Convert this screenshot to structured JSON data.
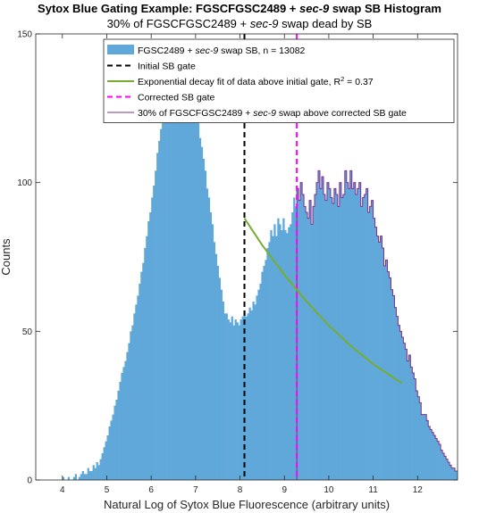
{
  "chart_data": {
    "type": "bar",
    "title": {
      "prefix": "Sytox Blue Gating Example: FGSCFGSC2489 + ",
      "italic": "sec-9",
      "suffix": " swap SB Histogram"
    },
    "subtitle": {
      "prefix": "30% of FGSCFGSC2489 + ",
      "italic": "sec-9",
      "suffix": " swap dead by SB"
    },
    "xlabel": "Natural Log of Sytox Blue Fluorescence (arbitrary units)",
    "ylabel": "Counts",
    "xlim": [
      3.4,
      12.9
    ],
    "ylim": [
      0,
      150
    ],
    "xticks": [
      "4",
      "5",
      "6",
      "7",
      "8",
      "9",
      "10",
      "11",
      "12"
    ],
    "yticks": [
      "0",
      "50",
      "100",
      "150"
    ],
    "grid": false,
    "legend_position": "top-right",
    "legend": [
      {
        "prefix": "FGSC2489 + ",
        "italic": "sec-9",
        "suffix": " swap SB, n = 13082"
      },
      {
        "prefix": "Initial SB gate",
        "italic": "",
        "suffix": ""
      },
      {
        "prefix": "Exponential decay fit of data above initial gate, R",
        "sup": "2",
        "suffix": " = 0.37"
      },
      {
        "prefix": "Corrected SB gate",
        "italic": "",
        "suffix": ""
      },
      {
        "prefix": "30% of FGSCFGSC2489 + ",
        "italic": "sec-9",
        "suffix": " swap above corrected SB gate"
      }
    ],
    "colors": {
      "histogram": "#5fa8d9",
      "initial_gate": "#000000",
      "fit": "#77ac30",
      "corrected_gate": "#ff00ff",
      "above_gate_outline": "#7e2f8e"
    },
    "histogram": {
      "bin_start": 3.4,
      "bin_width": 0.04,
      "counts": [
        0,
        0,
        0,
        0,
        0,
        0,
        0,
        0,
        0,
        0,
        0,
        0,
        0,
        0,
        0,
        1,
        0,
        0,
        1,
        0,
        0,
        1,
        2,
        0,
        1,
        2,
        3,
        2,
        2,
        4,
        3,
        3,
        5,
        4,
        6,
        5,
        7,
        9,
        11,
        13,
        15,
        18,
        20,
        22,
        25,
        27,
        30,
        33,
        36,
        38,
        40,
        43,
        46,
        50,
        52,
        56,
        59,
        62,
        66,
        70,
        73,
        78,
        82,
        87,
        90,
        95,
        99,
        104,
        110,
        114,
        118,
        120,
        124,
        126,
        129,
        132,
        134,
        136,
        138,
        140,
        140,
        142,
        140,
        144,
        140,
        138,
        136,
        142,
        138,
        130,
        126,
        120,
        115,
        112,
        108,
        104,
        98,
        95,
        90,
        86,
        80,
        76,
        72,
        68,
        64,
        60,
        56,
        56,
        54,
        53,
        55,
        52,
        54,
        53,
        52,
        54,
        55,
        57,
        55,
        56,
        58,
        57,
        60,
        59,
        62,
        64,
        66,
        70,
        72,
        74,
        78,
        80,
        84,
        82,
        86,
        82,
        88,
        86,
        84,
        88,
        84,
        83,
        85,
        86,
        90,
        95,
        92,
        98,
        94,
        100,
        96,
        92,
        90,
        88,
        94,
        86,
        92,
        96,
        100,
        104,
        98,
        102,
        96,
        94,
        100,
        98,
        95,
        93,
        98,
        96,
        92,
        100,
        95,
        96,
        104,
        100,
        98,
        104,
        98,
        100,
        96,
        98,
        100,
        92,
        95,
        96,
        98,
        90,
        92,
        94,
        88,
        85,
        82,
        80,
        82,
        78,
        72,
        74,
        70,
        68,
        64,
        62,
        58,
        55,
        52,
        50,
        48,
        46,
        44,
        40,
        42,
        38,
        36,
        34,
        30,
        28,
        26,
        22,
        22,
        22,
        20,
        18,
        17,
        16,
        15,
        14,
        13,
        12,
        10,
        9,
        8,
        7,
        6,
        5,
        4,
        4,
        3,
        3,
        2,
        2,
        1,
        0,
        0,
        0,
        0
      ]
    },
    "initial_gate_x": 8.1,
    "corrected_gate_x": 9.28,
    "fit_curve": {
      "x": [
        8.1,
        8.5,
        9.0,
        9.5,
        10.0,
        10.5,
        11.0,
        11.5,
        11.65
      ],
      "y": [
        88,
        79,
        69,
        60,
        52,
        45,
        39,
        34,
        32.5
      ]
    }
  }
}
